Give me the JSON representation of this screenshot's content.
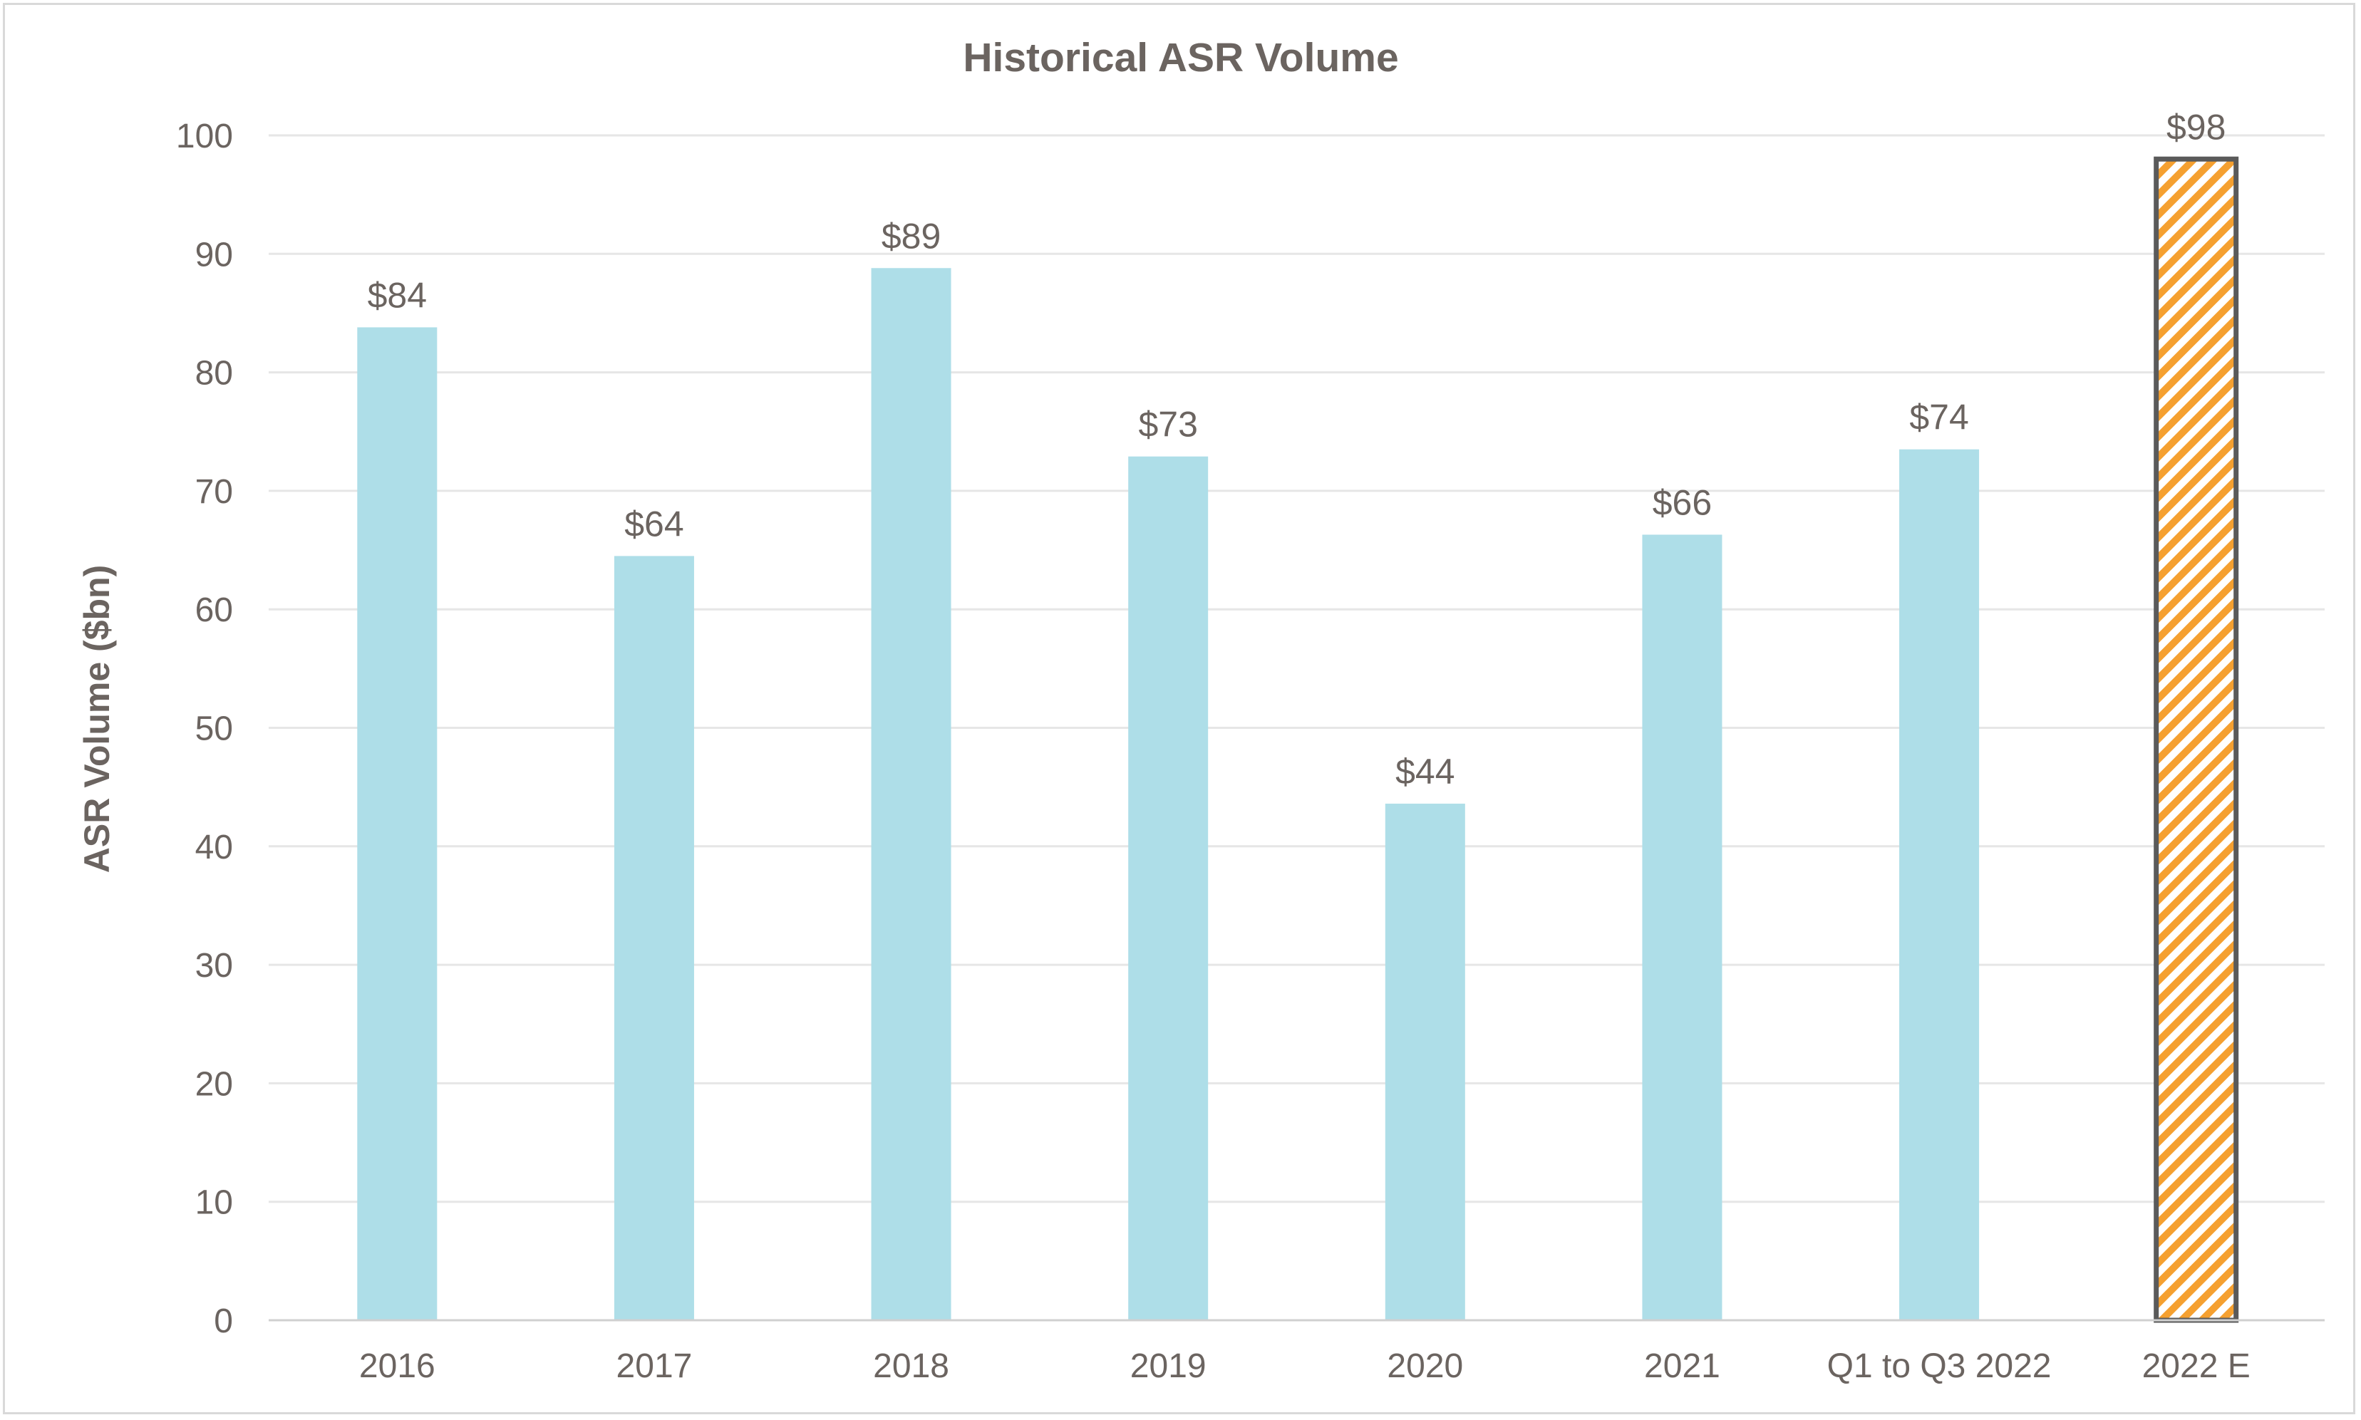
{
  "chart_data": {
    "type": "bar",
    "title": "Historical ASR Volume",
    "xlabel": "",
    "ylabel": "ASR Volume ($bn)",
    "ylim": [
      0,
      100
    ],
    "yticks": [
      0,
      10,
      20,
      30,
      40,
      50,
      60,
      70,
      80,
      90,
      100
    ],
    "grid": true,
    "legend": "none",
    "categories": [
      "2016",
      "2017",
      "2018",
      "2019",
      "2020",
      "2021",
      "Q1 to Q3 2022",
      "2022 E"
    ],
    "values": [
      83.8,
      64.5,
      88.8,
      72.9,
      43.6,
      66.3,
      73.5,
      98.0
    ],
    "data_labels": [
      "$84",
      "$64",
      "$89",
      "$73",
      "$44",
      "$66",
      "$74",
      "$98"
    ],
    "estimated": [
      false,
      false,
      false,
      false,
      false,
      false,
      false,
      true
    ],
    "colors": {
      "bar": "#aedee8",
      "estimate_hatch": "#f5a030",
      "estimate_border": "#5a5a5a",
      "text": "#6b6460",
      "grid": "#e6e6e6",
      "axis": "#d0d0d0"
    }
  }
}
